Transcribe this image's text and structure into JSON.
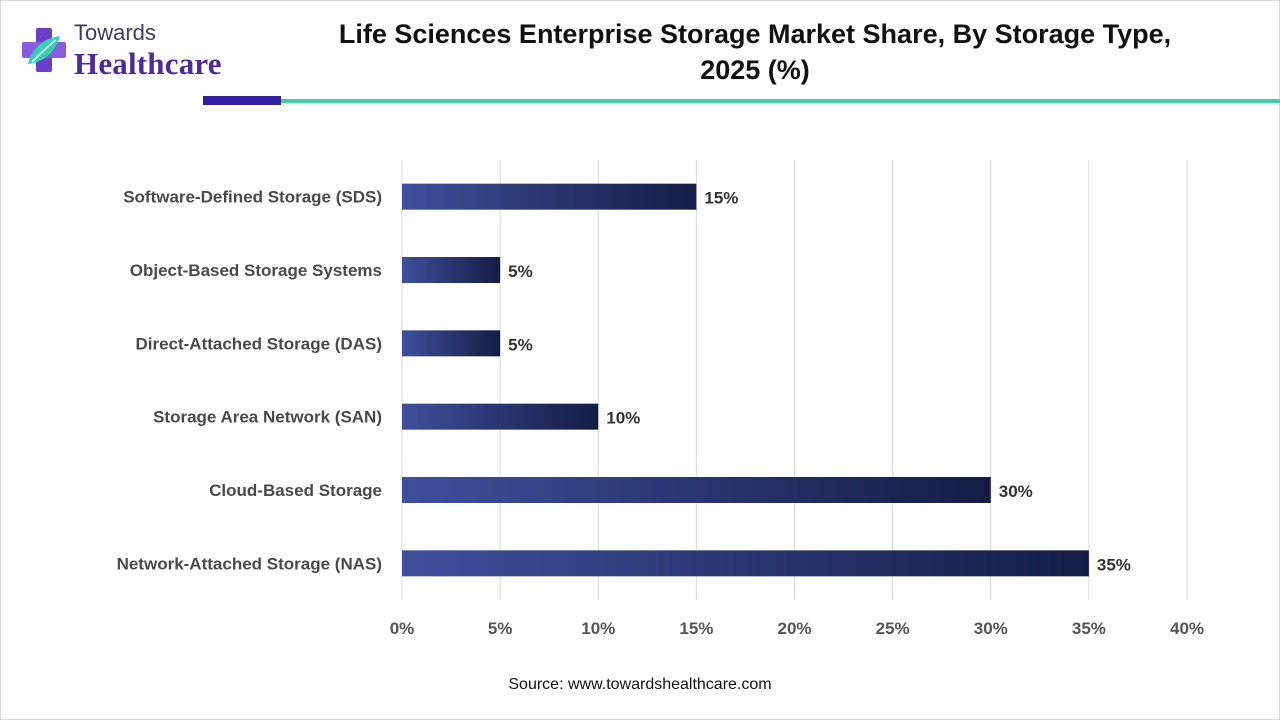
{
  "brand": {
    "line1": "Towards",
    "line2": "Healthcare"
  },
  "colors": {
    "bar_start": "#3f4f9c",
    "bar_end": "#151c44",
    "grid": "#d9d9d9",
    "accent_purple": "#2f1f9e",
    "accent_teal": "#3fcfa8"
  },
  "chart_data": {
    "type": "bar",
    "orientation": "horizontal",
    "title": "Life Sciences Enterprise Storage Market Share, By Storage Type, 2025 (%)",
    "categories": [
      "Software-Defined Storage (SDS)",
      "Object-Based Storage Systems",
      "Direct-Attached Storage (DAS)",
      "Storage Area Network (SAN)",
      "Cloud-Based Storage",
      "Network-Attached Storage (NAS)"
    ],
    "values": [
      15,
      5,
      5,
      10,
      30,
      35
    ],
    "data_labels": [
      "15%",
      "5%",
      "5%",
      "10%",
      "30%",
      "35%"
    ],
    "xlim": [
      0,
      40
    ],
    "xticks": [
      0,
      5,
      10,
      15,
      20,
      25,
      30,
      35,
      40
    ],
    "xtick_labels": [
      "0%",
      "5%",
      "10%",
      "15%",
      "20%",
      "25%",
      "30%",
      "35%",
      "40%"
    ],
    "xlabel": "",
    "ylabel": "",
    "grid": true
  },
  "source": "Source: www.towardshealthcare.com"
}
